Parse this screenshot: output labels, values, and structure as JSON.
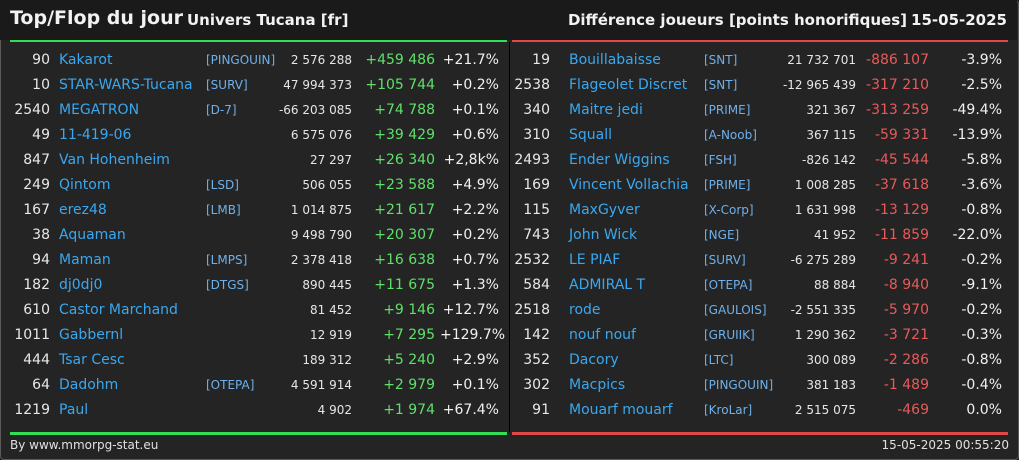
{
  "header": {
    "title": "Top/Flop du jour",
    "univers": "Univers Tucana [fr]",
    "diff_label": "Différence joueurs [points honorifiques]",
    "date": "15-05-2025"
  },
  "top": [
    {
      "rank": "90",
      "name": "Kakarot",
      "guild": "[PINGOUIN]",
      "points": "2 576 288",
      "diff": "+459 486",
      "pct": "+21.7%"
    },
    {
      "rank": "10",
      "name": "STAR-WARS-Tucana",
      "guild": "[SURV]",
      "points": "47 994 373",
      "diff": "+105 744",
      "pct": "+0.2%"
    },
    {
      "rank": "2540",
      "name": "MEGATRON",
      "guild": "[D-7]",
      "points": "-66 203 085",
      "diff": "+74 788",
      "pct": "+0.1%"
    },
    {
      "rank": "49",
      "name": "11-419-06",
      "guild": "",
      "points": "6 575 076",
      "diff": "+39 429",
      "pct": "+0.6%"
    },
    {
      "rank": "847",
      "name": "Van Hohenheim",
      "guild": "",
      "points": "27 297",
      "diff": "+26 340",
      "pct": "+2,8k%"
    },
    {
      "rank": "249",
      "name": "Qintom",
      "guild": "[LSD]",
      "points": "506 055",
      "diff": "+23 588",
      "pct": "+4.9%"
    },
    {
      "rank": "167",
      "name": "erez48",
      "guild": "[LMB]",
      "points": "1 014 875",
      "diff": "+21 617",
      "pct": "+2.2%"
    },
    {
      "rank": "38",
      "name": "Aquaman",
      "guild": "",
      "points": "9 498 790",
      "diff": "+20 307",
      "pct": "+0.2%"
    },
    {
      "rank": "94",
      "name": "Maman",
      "guild": "[LMPS]",
      "points": "2 378 418",
      "diff": "+16 638",
      "pct": "+0.7%"
    },
    {
      "rank": "182",
      "name": "dj0dj0",
      "guild": "[DTGS]",
      "points": "890 445",
      "diff": "+11 675",
      "pct": "+1.3%"
    },
    {
      "rank": "610",
      "name": "Castor Marchand",
      "guild": "",
      "points": "81 452",
      "diff": "+9 146",
      "pct": "+12.7%"
    },
    {
      "rank": "1011",
      "name": "Gabbernl",
      "guild": "",
      "points": "12 919",
      "diff": "+7 295",
      "pct": "+129.7%"
    },
    {
      "rank": "444",
      "name": "Tsar Cesc",
      "guild": "",
      "points": "189 312",
      "diff": "+5 240",
      "pct": "+2.9%"
    },
    {
      "rank": "64",
      "name": "Dadohm",
      "guild": "[OTEPA]",
      "points": "4 591 914",
      "diff": "+2 979",
      "pct": "+0.1%"
    },
    {
      "rank": "1219",
      "name": "Paul",
      "guild": "",
      "points": "4 902",
      "diff": "+1 974",
      "pct": "+67.4%"
    }
  ],
  "flop": [
    {
      "rank": "19",
      "name": "Bouillabaisse",
      "guild": "[SNT]",
      "points": "21 732 701",
      "diff": "-886 107",
      "pct": "-3.9%"
    },
    {
      "rank": "2538",
      "name": "Flageolet Discret",
      "guild": "[SNT]",
      "points": "-12 965 439",
      "diff": "-317 210",
      "pct": "-2.5%"
    },
    {
      "rank": "340",
      "name": "Maitre jedi",
      "guild": "[PRIME]",
      "points": "321 367",
      "diff": "-313 259",
      "pct": "-49.4%"
    },
    {
      "rank": "310",
      "name": "Squall",
      "guild": "[A-Noob]",
      "points": "367 115",
      "diff": "-59 331",
      "pct": "-13.9%"
    },
    {
      "rank": "2493",
      "name": "Ender Wiggins",
      "guild": "[FSH]",
      "points": "-826 142",
      "diff": "-45 544",
      "pct": "-5.8%"
    },
    {
      "rank": "169",
      "name": "Vincent Vollachia",
      "guild": "[PRIME]",
      "points": "1 008 285",
      "diff": "-37 618",
      "pct": "-3.6%"
    },
    {
      "rank": "115",
      "name": "MaxGyver",
      "guild": "[X-Corp]",
      "points": "1 631 998",
      "diff": "-13 129",
      "pct": "-0.8%"
    },
    {
      "rank": "743",
      "name": "John Wick",
      "guild": "[NGE]",
      "points": "41 952",
      "diff": "-11 859",
      "pct": "-22.0%"
    },
    {
      "rank": "2532",
      "name": "LE PIAF",
      "guild": "[SURV]",
      "points": "-6 275 289",
      "diff": "-9 241",
      "pct": "-0.2%"
    },
    {
      "rank": "584",
      "name": "ADMIRAL T",
      "guild": "[OTEPA]",
      "points": "88 884",
      "diff": "-8 940",
      "pct": "-9.1%"
    },
    {
      "rank": "2518",
      "name": "rode",
      "guild": "[GAULOIS]",
      "points": "-2 551 335",
      "diff": "-5 970",
      "pct": "-0.2%"
    },
    {
      "rank": "142",
      "name": "nouf nouf",
      "guild": "[GRUIIK]",
      "points": "1 290 362",
      "diff": "-3 721",
      "pct": "-0.3%"
    },
    {
      "rank": "352",
      "name": "Dacory",
      "guild": "[LTC]",
      "points": "300 089",
      "diff": "-2 286",
      "pct": "-0.8%"
    },
    {
      "rank": "302",
      "name": "Macpics",
      "guild": "[PINGOUIN]",
      "points": "381 183",
      "diff": "-1 489",
      "pct": "-0.4%"
    },
    {
      "rank": "91",
      "name": "Mouarf mouarf",
      "guild": "[KroLar]",
      "points": "2 515 075",
      "diff": "-469",
      "pct": "0.0%"
    }
  ],
  "footer": {
    "source": "By www.mmorpg-stat.eu",
    "timestamp": "15-05-2025 00:55:20"
  },
  "colors": {
    "top_accent": "#33dd55",
    "flop_accent": "#e04848",
    "name_link": "#3aa8f0"
  }
}
